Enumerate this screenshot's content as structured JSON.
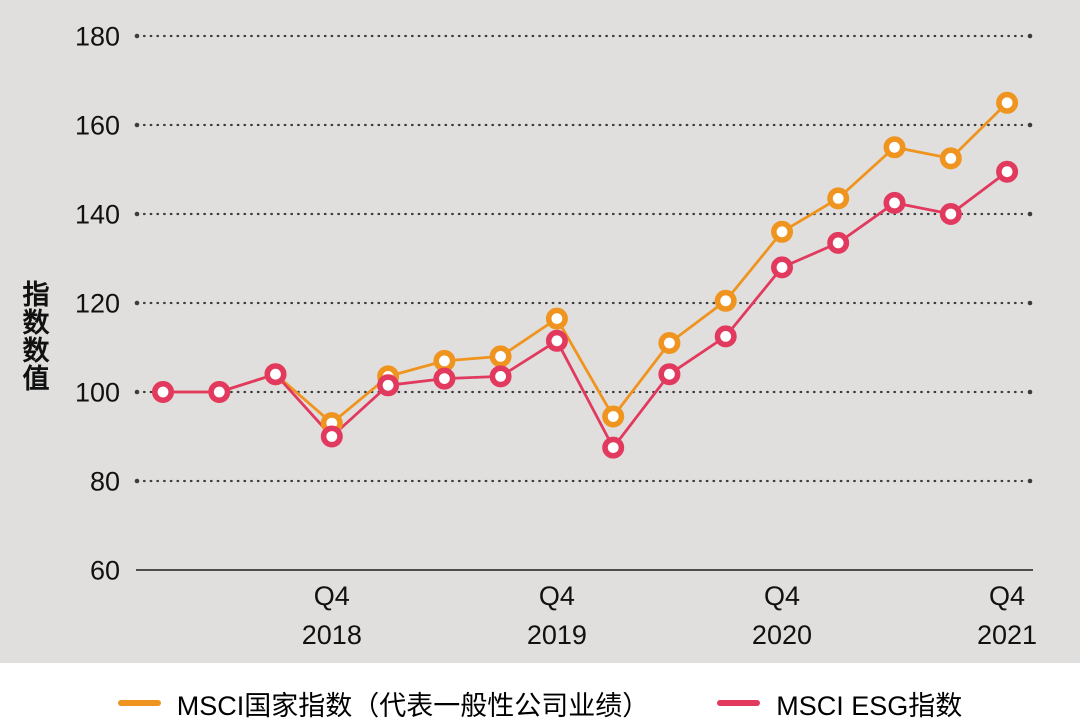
{
  "chart_data": {
    "type": "line",
    "title": "",
    "ylabel": "指数数值",
    "ylabel_multiline": "指\n数\n数\n值",
    "ylim": [
      60,
      180
    ],
    "yticks": [
      180,
      160,
      140,
      120,
      100,
      80,
      60
    ],
    "grid": "dotted horizontal lines, solid baseline at 60",
    "legend_position": "bottom center",
    "background_color": "#e0dfdd",
    "categories": [
      "2018 Q1",
      "2018 Q2",
      "2018 Q3",
      "2018 Q4",
      "2019 Q1",
      "2019 Q2",
      "2019 Q3",
      "2019 Q4",
      "2020 Q1",
      "2020 Q2",
      "2020 Q3",
      "2020 Q4",
      "2021 Q1",
      "2021 Q2",
      "2021 Q3",
      "2021 Q4"
    ],
    "x_ticks": [
      {
        "index": 3,
        "line1": "Q4",
        "line2": "2018"
      },
      {
        "index": 7,
        "line1": "Q4",
        "line2": "2019"
      },
      {
        "index": 11,
        "line1": "Q4",
        "line2": "2020"
      },
      {
        "index": 15,
        "line1": "Q4",
        "line2": "2021"
      }
    ],
    "series": [
      {
        "name": "MSCI国家指数（代表一般性公司业绩）",
        "color": "#ef941f",
        "marker": "circle-white-fill",
        "values": [
          100,
          100,
          104,
          93,
          103.5,
          107,
          108,
          116.5,
          94.5,
          111,
          120.5,
          136,
          143.5,
          155,
          152.5,
          165
        ]
      },
      {
        "name": "MSCI ESG指数",
        "color": "#e23a5f",
        "marker": "circle-white-fill",
        "values": [
          100,
          100,
          104,
          90,
          101.5,
          103,
          103.5,
          111.5,
          87.5,
          104,
          112.5,
          128,
          133.5,
          142.5,
          140,
          149.5
        ]
      }
    ]
  },
  "style": {
    "grid_dot_color": "#3c3c3c",
    "axis_line_color": "#4d4d4d",
    "text_color": "#111111"
  }
}
